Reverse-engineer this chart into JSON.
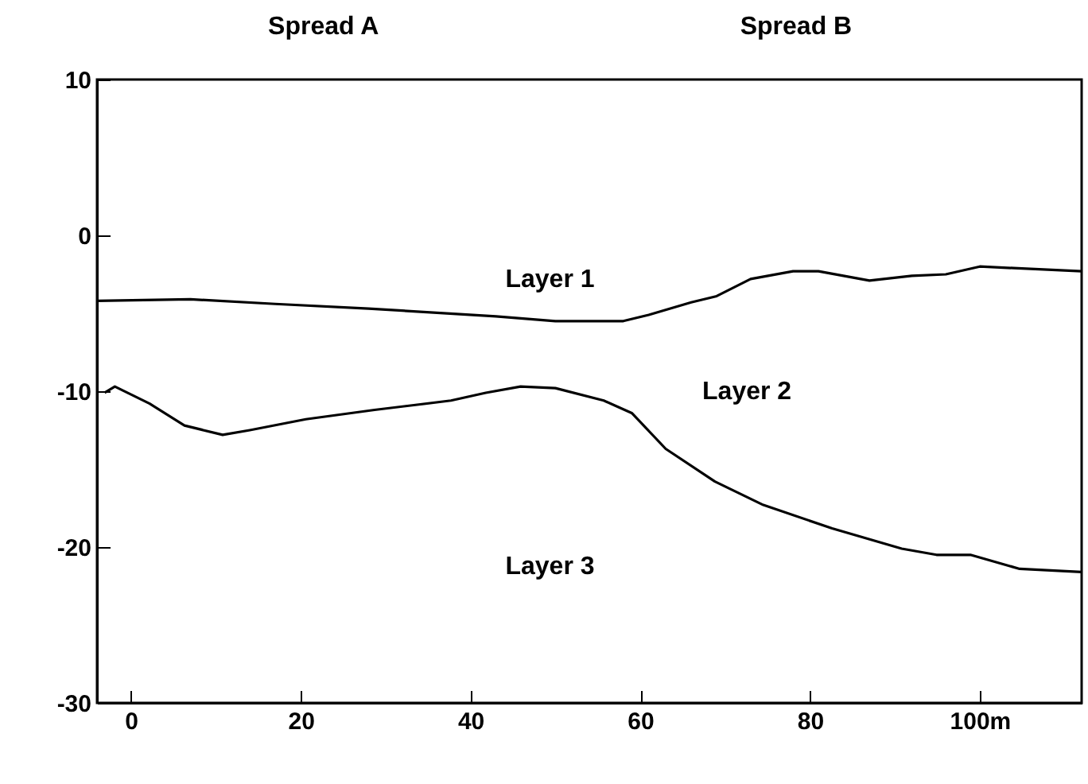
{
  "chart_data": {
    "type": "line",
    "x": [
      -4,
      7,
      17,
      28,
      43,
      50,
      58,
      61,
      66,
      69,
      73,
      78,
      81,
      87,
      92,
      96,
      100,
      104,
      112
    ],
    "series": [
      {
        "color": "#000000",
        "values": [
          -4.2,
          -4.1,
          -4.4,
          -4.7,
          -5.2,
          -5.5,
          -5.5,
          -5.1,
          -4.3,
          -3.9,
          -2.8,
          -2.3,
          -2.3,
          -2.9,
          -2.6,
          -2.5,
          -2.0,
          -2.1,
          -2.3
        ]
      },
      {
        "color": "#000000",
        "x": [
          -3.1,
          -1.9,
          2.2,
          6.3,
          10.8,
          14,
          20.6,
          28.7,
          37.7,
          41.8,
          45.9,
          50,
          55.7,
          59,
          63,
          68.8,
          74.5,
          82.6,
          90.8,
          94.9,
          98.9,
          104.7,
          112
        ],
        "values": [
          -10.1,
          -9.7,
          -10.8,
          -12.2,
          -12.8,
          -12.5,
          -11.8,
          -11.2,
          -10.6,
          -10.1,
          -9.7,
          -9.8,
          -10.6,
          -11.4,
          -13.7,
          -15.8,
          -17.3,
          -18.8,
          -20.1,
          -20.5,
          -20.5,
          -21.4,
          -21.6
        ]
      }
    ],
    "xlim": [
      -4,
      112
    ],
    "xticks": [
      0,
      20,
      40,
      60,
      80,
      {
        "value": 100,
        "label": "100m"
      }
    ],
    "ylim": [
      -30,
      10
    ],
    "yticks": [
      -30,
      -20,
      -10,
      0,
      10
    ],
    "grid": false,
    "legend": false,
    "marker": "none",
    "line_style": "solid",
    "annotations": [
      "Spread A",
      "Spread B",
      "Layer 1",
      "Layer 2",
      "Layer 3"
    ]
  }
}
